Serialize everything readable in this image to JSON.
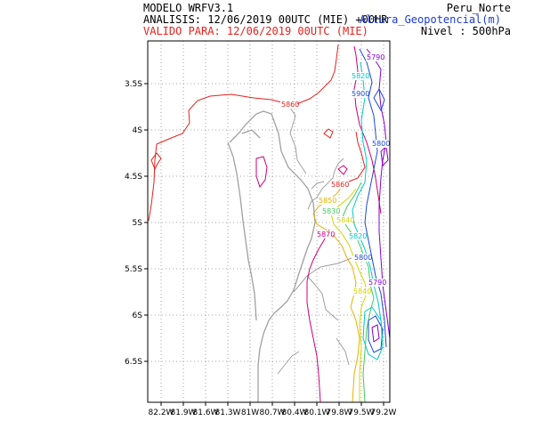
{
  "header": {
    "model": "MODELO  WRFV3.1",
    "analysis": "ANALISIS: 12/06/2019 00UTC (MIE) +00HR",
    "valid": "VALIDO PARA: 12/06/2019 00UTC (MIE)",
    "region": "Peru_Norte",
    "variable": "Altura_Geopotencial(m)",
    "level": "Nivel : 500hPa"
  },
  "colors": {
    "valid_text": "#e8201c",
    "variable_text": "#1a3ad6",
    "coast_line": "#a0a0a0",
    "grid": "#8c8c8c",
    "c5860": "#e8201c",
    "c5870": "#cc0077",
    "c5850": "#e8b000",
    "c5840": "#d4d400",
    "c5830": "#44c860",
    "c5820": "#00c8c8",
    "c5800": "#1a4ad6",
    "c5790": "#8800cc"
  },
  "map": {
    "x_ticks": [
      "82.2W",
      "81.9W",
      "81.6W",
      "81.3W",
      "81W",
      "80.7W",
      "80.4W",
      "80.1W",
      "79.8W",
      "79.5W",
      "79.2W"
    ],
    "y_ticks": [
      "3.5S",
      "4S",
      "4.5S",
      "5S",
      "5.5S",
      "6S",
      "6.5S"
    ],
    "contour_labels": [
      {
        "id": "l5860a",
        "text": "5860",
        "color": "c5860"
      },
      {
        "id": "l5790a",
        "text": "5790",
        "color": "c5790"
      },
      {
        "id": "l5820a",
        "text": "5820",
        "color": "c5820"
      },
      {
        "id": "l5900",
        "text": "5900",
        "color": "c5800"
      },
      {
        "id": "l5800a",
        "text": "5800",
        "color": "c5800"
      },
      {
        "id": "l5860b",
        "text": "5860",
        "color": "c5860"
      },
      {
        "id": "l5850",
        "text": "5850",
        "color": "c5850"
      },
      {
        "id": "l5830",
        "text": "5830",
        "color": "c5830"
      },
      {
        "id": "l5840a",
        "text": "5840",
        "color": "c5840"
      },
      {
        "id": "l5870",
        "text": "5870",
        "color": "c5870"
      },
      {
        "id": "l5820b",
        "text": "5820",
        "color": "c5820"
      },
      {
        "id": "l5800b",
        "text": "5800",
        "color": "c5800"
      },
      {
        "id": "l5790b",
        "text": "5790",
        "color": "c5790"
      },
      {
        "id": "l5840b",
        "text": "5840",
        "color": "c5840"
      }
    ]
  }
}
